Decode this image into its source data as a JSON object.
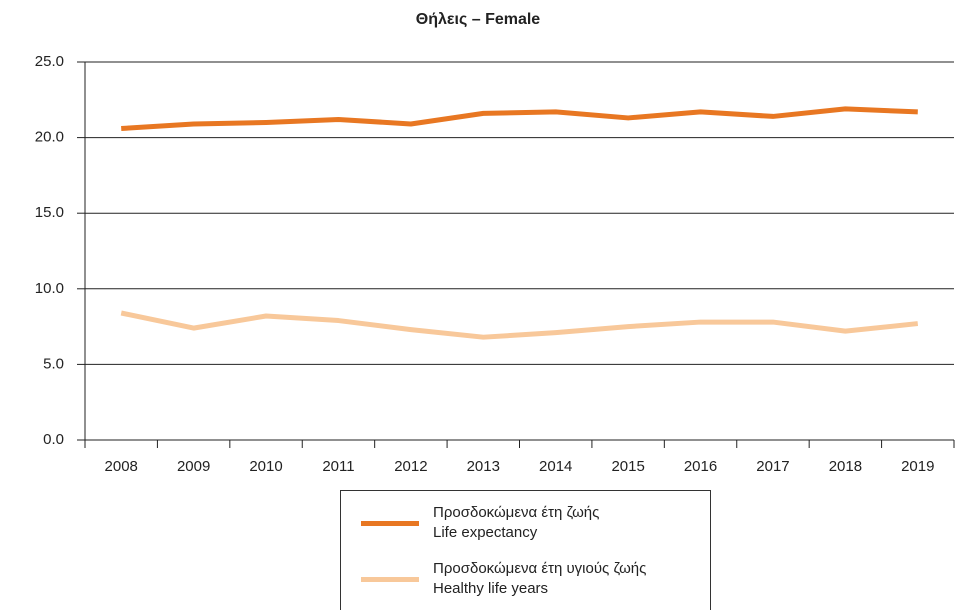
{
  "chart_data": {
    "type": "line",
    "title": "Θήλεις – Female",
    "categories": [
      "2008",
      "2009",
      "2010",
      "2011",
      "2012",
      "2013",
      "2014",
      "2015",
      "2016",
      "2017",
      "2018",
      "2019"
    ],
    "series": [
      {
        "name": "Προσδοκώμενα έτη ζωής\nLife expectancy",
        "color": "#e87722",
        "values": [
          20.6,
          20.9,
          21.0,
          21.2,
          20.9,
          21.6,
          21.7,
          21.3,
          21.7,
          21.4,
          21.9,
          21.7
        ]
      },
      {
        "name": "Προσδοκώμενα έτη υγιούς ζωής\nHealthy life years",
        "color": "#f8c89a",
        "values": [
          8.4,
          7.4,
          8.2,
          7.9,
          7.3,
          6.8,
          7.1,
          7.5,
          7.8,
          7.8,
          7.2,
          7.7
        ]
      }
    ],
    "ylim": [
      0,
      25
    ],
    "yticks": [
      {
        "value": 0,
        "label": "0.0"
      },
      {
        "value": 5,
        "label": "5.0"
      },
      {
        "value": 10,
        "label": "10.0"
      },
      {
        "value": 15,
        "label": "15.0"
      },
      {
        "value": 20,
        "label": "20.0"
      },
      {
        "value": 25,
        "label": "25.0"
      }
    ],
    "grid": true,
    "legend": "bottom"
  }
}
